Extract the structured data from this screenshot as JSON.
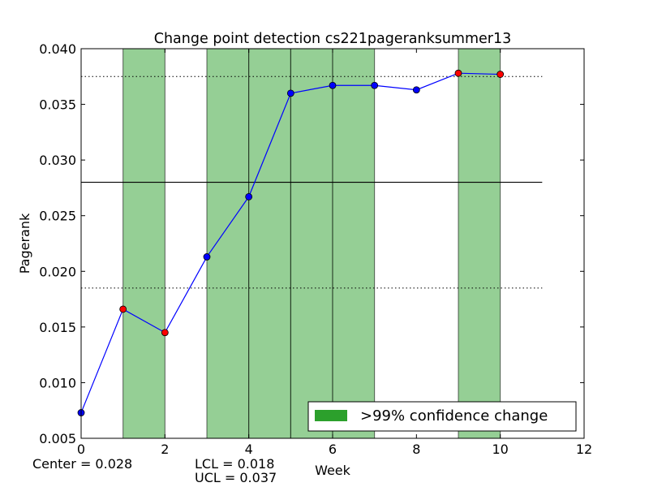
{
  "chart_data": {
    "type": "line",
    "title": "Change point detection cs221pageranksummer13",
    "xlabel": "Week",
    "ylabel": "Pagerank",
    "xlim": [
      0,
      12
    ],
    "ylim": [
      0.005,
      0.04
    ],
    "x_ticks": [
      0,
      2,
      4,
      6,
      8,
      10,
      12
    ],
    "x_tick_labels": [
      "0",
      "2",
      "4",
      "6",
      "8",
      "10",
      "12"
    ],
    "y_ticks": [
      0.005,
      0.01,
      0.015,
      0.02,
      0.025,
      0.03,
      0.035,
      0.04
    ],
    "y_tick_labels": [
      "0.005",
      "0.010",
      "0.015",
      "0.020",
      "0.025",
      "0.030",
      "0.035",
      "0.040"
    ],
    "grid": false,
    "series": [
      {
        "x": [
          0,
          1,
          2,
          3,
          4,
          5,
          6,
          7,
          8,
          9,
          10
        ],
        "values": [
          0.0073,
          0.0166,
          0.0145,
          0.0213,
          0.0267,
          0.036,
          0.0367,
          0.0367,
          0.0363,
          0.0378,
          0.0377
        ],
        "flagged": [
          false,
          true,
          true,
          false,
          false,
          false,
          false,
          false,
          false,
          true,
          true
        ],
        "color": "#0000ff"
      }
    ],
    "change_bands": [
      [
        1,
        2
      ],
      [
        3,
        4
      ],
      [
        4,
        5
      ],
      [
        5,
        6
      ],
      [
        6,
        7
      ],
      [
        9,
        10
      ]
    ],
    "center": 0.028,
    "lcl": 0.0185,
    "ucl": 0.0375,
    "control_line_extent": [
      0,
      11
    ],
    "legend": {
      "label": ">99% confidence change",
      "color": "#2ca02c",
      "placement": "lower-right"
    },
    "colors": {
      "band_fill": "#2ca02c",
      "line": "#0000ff",
      "marker_normal": "#0000ff",
      "marker_flagged": "#ff0000"
    },
    "stats_text": {
      "center": "Center = 0.028",
      "lcl": "LCL = 0.018",
      "ucl": "UCL = 0.037"
    }
  }
}
